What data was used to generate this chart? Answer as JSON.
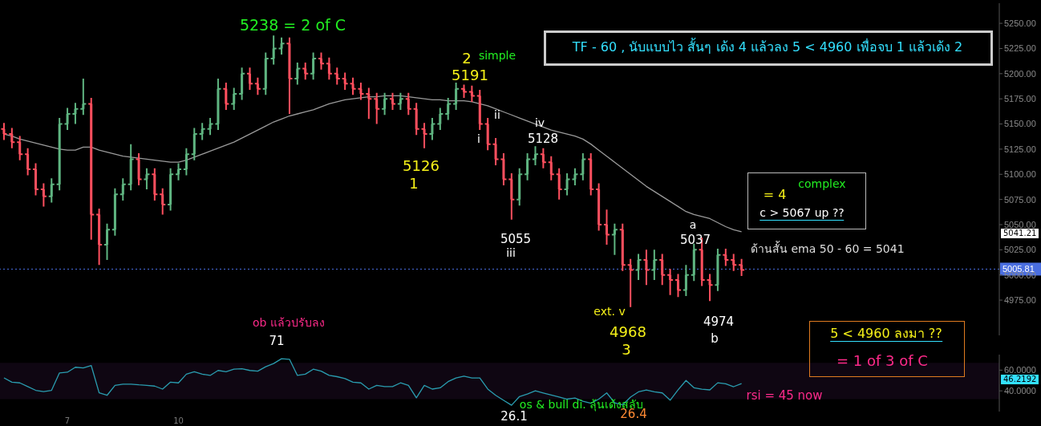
{
  "chart_data": [
    {
      "type": "candlestick",
      "categories": [
        null,
        null,
        null,
        null,
        null,
        null,
        null,
        null,
        null,
        null,
        null,
        null,
        null,
        null,
        null,
        null,
        null,
        null,
        null,
        null,
        null,
        null,
        null,
        null,
        null,
        null,
        null,
        null,
        null,
        null,
        null,
        null,
        null,
        null,
        null,
        null,
        null,
        null,
        null,
        null,
        null,
        null,
        null,
        null,
        null,
        null,
        null,
        null,
        null,
        null,
        null,
        null,
        null,
        null,
        null,
        null,
        null,
        null,
        null,
        null,
        null,
        null,
        null,
        null,
        null,
        null,
        null,
        null,
        null,
        null,
        null,
        null,
        null,
        null,
        null,
        null,
        null,
        null,
        null,
        null,
        null,
        null,
        null,
        null,
        null,
        null,
        null,
        null,
        null,
        null,
        null,
        null,
        null,
        null,
        null,
        null,
        null,
        null,
        null,
        null,
        null,
        null,
        null,
        null,
        null,
        null,
        null,
        null,
        null,
        null,
        null,
        null,
        null,
        null,
        null,
        null,
        null,
        null,
        null,
        null,
        null,
        null,
        null,
        null,
        null,
        null
      ],
      "series": [
        {
          "type": "line",
          "color": "#9a9a9a",
          "values": [
            5140,
            5138,
            5135,
            5133,
            5131,
            5129,
            5127,
            5125,
            5124,
            5124,
            5127,
            5127,
            5124,
            5122,
            5120,
            5118,
            5117,
            5116,
            5115,
            5114,
            5113,
            5112,
            5112,
            5114,
            5117,
            5120,
            5123,
            5126,
            5129,
            5132,
            5136,
            5140,
            5144,
            5148,
            5152,
            5155,
            5158,
            5160,
            5162,
            5164,
            5167,
            5170,
            5172,
            5174,
            5175,
            5176,
            5177,
            5177,
            5178,
            5178,
            5178,
            5177,
            5176,
            5175,
            5174,
            5174,
            5173,
            5173,
            5173,
            5172,
            5170,
            5168,
            5165,
            5162,
            5159,
            5156,
            5153,
            5150,
            5147,
            5144,
            5142,
            5140,
            5138,
            5135,
            5130,
            5124,
            5118,
            5112,
            5106,
            5100,
            5094,
            5088,
            5083,
            5078,
            5073,
            5068,
            5063,
            5060,
            5058,
            5056,
            5052,
            5048,
            5045,
            5043,
            null,
            null,
            null,
            null,
            null,
            null,
            null,
            null,
            null,
            null,
            null,
            null,
            null,
            null,
            null,
            null,
            null,
            null,
            null,
            null,
            null,
            null,
            null,
            null,
            null,
            null,
            null,
            null,
            null,
            null,
            null,
            null
          ]
        },
        {
          "type": "candlestick",
          "ohlc": [
            [
              5145,
              5151,
              5134,
              5140
            ],
            [
              5140,
              5146,
              5126,
              5132
            ],
            [
              5132,
              5138,
              5114,
              5120
            ],
            [
              5120,
              5126,
              5099,
              5105
            ],
            [
              5105,
              5111,
              5079,
              5085
            ],
            [
              5085,
              5091,
              5068,
              5078
            ],
            [
              5078,
              5096,
              5072,
              5090
            ],
            [
              5090,
              5156,
              5084,
              5150
            ],
            [
              5150,
              5166,
              5144,
              5160
            ],
            [
              5160,
              5171,
              5150,
              5165
            ],
            [
              5165,
              5195,
              5159,
              5170
            ],
            [
              5170,
              5176,
              5035,
              5060
            ],
            [
              5060,
              5066,
              5010,
              5030
            ],
            [
              5030,
              5051,
              5015,
              5045
            ],
            [
              5045,
              5086,
              5039,
              5080
            ],
            [
              5080,
              5096,
              5074,
              5090
            ],
            [
              5090,
              5130,
              5084,
              5115
            ],
            [
              5115,
              5121,
              5089,
              5095
            ],
            [
              5095,
              5106,
              5085,
              5100
            ],
            [
              5100,
              5106,
              5074,
              5080
            ],
            [
              5080,
              5086,
              5060,
              5070
            ],
            [
              5070,
              5106,
              5064,
              5100
            ],
            [
              5100,
              5111,
              5094,
              5105
            ],
            [
              5105,
              5126,
              5099,
              5120
            ],
            [
              5120,
              5146,
              5114,
              5140
            ],
            [
              5140,
              5151,
              5134,
              5145
            ],
            [
              5145,
              5156,
              5139,
              5150
            ],
            [
              5150,
              5195,
              5144,
              5185
            ],
            [
              5185,
              5191,
              5164,
              5170
            ],
            [
              5170,
              5186,
              5164,
              5180
            ],
            [
              5180,
              5206,
              5174,
              5200
            ],
            [
              5200,
              5206,
              5184,
              5190
            ],
            [
              5190,
              5196,
              5179,
              5185
            ],
            [
              5185,
              5221,
              5179,
              5215
            ],
            [
              5215,
              5238,
              5209,
              5225
            ],
            [
              5225,
              5236,
              5219,
              5230
            ],
            [
              5230,
              5236,
              5160,
              5195
            ],
            [
              5195,
              5211,
              5189,
              5205
            ],
            [
              5205,
              5211,
              5194,
              5200
            ],
            [
              5200,
              5221,
              5194,
              5215
            ],
            [
              5215,
              5221,
              5204,
              5210
            ],
            [
              5210,
              5216,
              5194,
              5200
            ],
            [
              5200,
              5206,
              5189,
              5195
            ],
            [
              5195,
              5201,
              5184,
              5190
            ],
            [
              5190,
              5196,
              5179,
              5185
            ],
            [
              5185,
              5191,
              5174,
              5180
            ],
            [
              5180,
              5186,
              5155,
              5175
            ],
            [
              5175,
              5181,
              5150,
              5165
            ],
            [
              5165,
              5181,
              5159,
              5175
            ],
            [
              5175,
              5181,
              5164,
              5170
            ],
            [
              5170,
              5181,
              5164,
              5175
            ],
            [
              5175,
              5181,
              5159,
              5165
            ],
            [
              5165,
              5171,
              5139,
              5145
            ],
            [
              5145,
              5151,
              5126,
              5140
            ],
            [
              5140,
              5156,
              5134,
              5150
            ],
            [
              5150,
              5166,
              5144,
              5160
            ],
            [
              5160,
              5176,
              5154,
              5170
            ],
            [
              5170,
              5191,
              5164,
              5185
            ],
            [
              5185,
              5189,
              5176,
              5182
            ],
            [
              5182,
              5188,
              5172,
              5178
            ],
            [
              5178,
              5184,
              5144,
              5150
            ],
            [
              5150,
              5156,
              5124,
              5130
            ],
            [
              5130,
              5136,
              5109,
              5115
            ],
            [
              5115,
              5121,
              5089,
              5095
            ],
            [
              5095,
              5101,
              5055,
              5075
            ],
            [
              5075,
              5106,
              5069,
              5100
            ],
            [
              5100,
              5121,
              5094,
              5115
            ],
            [
              5115,
              5128,
              5109,
              5120
            ],
            [
              5120,
              5126,
              5106,
              5112
            ],
            [
              5112,
              5118,
              5094,
              5100
            ],
            [
              5100,
              5106,
              5075,
              5085
            ],
            [
              5085,
              5101,
              5079,
              5095
            ],
            [
              5095,
              5106,
              5089,
              5100
            ],
            [
              5100,
              5121,
              5094,
              5115
            ],
            [
              5115,
              5121,
              5079,
              5085
            ],
            [
              5085,
              5091,
              5044,
              5050
            ],
            [
              5050,
              5065,
              5030,
              5040
            ],
            [
              5040,
              5051,
              5020,
              5045
            ],
            [
              5045,
              5051,
              5004,
              5010
            ],
            [
              5010,
              5016,
              4968,
              5005
            ],
            [
              5005,
              5021,
              4995,
              5015
            ],
            [
              5015,
              5025,
              4990,
              5005
            ],
            [
              5005,
              5025,
              4995,
              5015
            ],
            [
              5015,
              5021,
              4990,
              5000
            ],
            [
              5000,
              5006,
              4980,
              4995
            ],
            [
              4995,
              5001,
              4978,
              4985
            ],
            [
              4985,
              5010,
              4979,
              5000
            ],
            [
              5000,
              5031,
              4994,
              5025
            ],
            [
              5025,
              5037,
              4989,
              4995
            ],
            [
              4995,
              5001,
              4974,
              4990
            ],
            [
              4990,
              5026,
              4984,
              5020
            ],
            [
              5020,
              5026,
              5009,
              5015
            ],
            [
              5015,
              5021,
              5004,
              5010
            ],
            [
              5010,
              5016,
              4999,
              5005
            ],
            null,
            null,
            null,
            null,
            null,
            null,
            null,
            null,
            null,
            null,
            null,
            null,
            null,
            null,
            null,
            null,
            null,
            null,
            null,
            null,
            null,
            null,
            null,
            null,
            null,
            null,
            null,
            null,
            null,
            null,
            null,
            null
          ],
          "colors": [
            "#ff4f5e",
            "#ff4f5e",
            "#ff4f5e",
            "#ff4f5e",
            "#ff4f5e",
            "#ff4f5e",
            "#5fb581",
            "#5fb581",
            "#5fb581",
            "#5fb581",
            "#5fb581",
            "#ff4f5e",
            "#ff4f5e",
            "#5fb581",
            "#5fb581",
            "#5fb581",
            "#5fb581",
            "#ff4f5e",
            "#5fb581",
            "#ff4f5e",
            "#ff4f5e",
            "#5fb581",
            "#5fb581",
            "#5fb581",
            "#5fb581",
            "#5fb581",
            "#5fb581",
            "#5fb581",
            "#ff4f5e",
            "#5fb581",
            "#5fb581",
            "#ff4f5e",
            "#ff4f5e",
            "#5fb581",
            "#5fb581",
            "#5fb581",
            "#ff4f5e",
            "#5fb581",
            "#ff4f5e",
            "#5fb581",
            "#ff4f5e",
            "#ff4f5e",
            "#ff4f5e",
            "#ff4f5e",
            "#ff4f5e",
            "#ff4f5e",
            "#ff4f5e",
            "#ff4f5e",
            "#5fb581",
            "#ff4f5e",
            "#5fb581",
            "#ff4f5e",
            "#ff4f5e",
            "#ff4f5e",
            "#5fb581",
            "#5fb581",
            "#5fb581",
            "#5fb581",
            "#ff4f5e",
            "#ff4f5e",
            "#ff4f5e",
            "#ff4f5e",
            "#ff4f5e",
            "#ff4f5e",
            "#ff4f5e",
            "#5fb581",
            "#5fb581",
            "#5fb581",
            "#ff4f5e",
            "#ff4f5e",
            "#ff4f5e",
            "#5fb581",
            "#5fb581",
            "#5fb581",
            "#ff4f5e",
            "#ff4f5e",
            "#ff4f5e",
            "#5fb581",
            "#ff4f5e",
            "#ff4f5e",
            "#5fb581",
            "#ff4f5e",
            "#5fb581",
            "#ff4f5e",
            "#ff4f5e",
            "#ff4f5e",
            "#5fb581",
            "#5fb581",
            "#ff4f5e",
            "#ff4f5e",
            "#5fb581",
            "#ff4f5e",
            "#ff4f5e",
            "#ff4f5e",
            null,
            null,
            null,
            null,
            null,
            null,
            null,
            null,
            null,
            null,
            null,
            null,
            null,
            null,
            null,
            null,
            null,
            null,
            null,
            null,
            null,
            null,
            null,
            null,
            null,
            null,
            null,
            null,
            null,
            null,
            null,
            null
          ]
        }
      ],
      "ylim": [
        4940,
        5270
      ],
      "yticks": [
        {
          "value": 4975,
          "label": "4975.00"
        },
        {
          "value": 5000,
          "label": "5000.00"
        },
        {
          "value": 5025,
          "label": "5025.00"
        },
        {
          "value": 5050,
          "label": "5050.00"
        },
        {
          "value": 5075,
          "label": "5075.00"
        },
        {
          "value": 5100,
          "label": "5100.00"
        },
        {
          "value": 5125,
          "label": "5125.00"
        },
        {
          "value": 5150,
          "label": "5150.00"
        },
        {
          "value": 5175,
          "label": "5175.00"
        },
        {
          "value": 5200,
          "label": "5200.00"
        },
        {
          "value": 5225,
          "label": "5225.00"
        },
        {
          "value": 5250,
          "label": "5250.00"
        }
      ],
      "tick_labels": "y",
      "ref_lines": [
        {
          "axis": "y",
          "value": 5005.81,
          "label": "5005.81",
          "color": "#4a6ee0",
          "line_style": "dotted"
        }
      ],
      "annotations": [
        "5238 = 2  of C",
        "2",
        "simple",
        "5191",
        "5126",
        "1",
        "i",
        "ii",
        "iv",
        "5128",
        "5055",
        "iii",
        "ext. v",
        "4968",
        "3",
        "a",
        "5037",
        "4974",
        "b",
        "TF - 60 , นับแบบไว สั้นๆ เด้ง 4 แล้วลง 5 < 4960 เพื่อจบ 1 แล้วเด้ง 2",
        "= 4",
        "complex",
        "c > 5067 up ??",
        "ด้านสั้น ema 50 - 60 = 5041",
        "5 < 4960 ลงมา ??",
        "= 1  of  3  of  C",
        "5041.21"
      ]
    },
    {
      "type": "line",
      "categories": [
        null,
        null,
        null,
        null,
        null,
        null,
        null,
        null,
        "7",
        null,
        null,
        null,
        null,
        null,
        null,
        null,
        null,
        null,
        null,
        null,
        null,
        null,
        "10",
        null,
        null,
        null,
        null,
        null,
        null,
        null,
        null,
        null,
        null,
        null,
        null,
        null,
        null,
        null,
        null,
        null,
        null,
        null,
        null,
        null,
        null,
        null,
        null,
        null,
        null,
        null,
        null,
        null,
        null,
        null,
        null,
        null,
        null,
        null,
        null,
        null,
        null,
        null,
        null,
        null,
        null,
        null,
        null,
        null,
        null,
        null,
        null,
        null,
        null,
        null,
        null,
        null,
        null,
        null,
        null,
        null,
        null,
        null,
        null,
        null,
        null,
        null,
        null,
        null,
        null,
        null,
        null,
        null,
        null,
        null,
        null,
        null,
        null,
        null,
        null,
        null,
        null,
        null,
        null,
        null,
        null,
        null,
        null,
        null,
        null,
        null,
        null,
        null,
        null,
        null,
        null,
        null,
        null,
        null,
        null,
        null,
        null,
        null,
        null,
        null,
        null,
        null
      ],
      "values": [
        52.5,
        48.4,
        47.7,
        44.1,
        40.5,
        39.3,
        40.5,
        57.3,
        58,
        62.8,
        62.1,
        64.5,
        38.1,
        35.7,
        45.3,
        46.5,
        46.5,
        45.8,
        45.3,
        44.6,
        41.7,
        48.4,
        47.7,
        56.1,
        58.5,
        56.1,
        54.9,
        59.7,
        58.5,
        60.9,
        61.4,
        59.7,
        59,
        63.3,
        66.4,
        71,
        70.5,
        54.9,
        56.1,
        60.9,
        59,
        54.9,
        53.7,
        51.8,
        48.4,
        47.7,
        41.7,
        45.3,
        44.1,
        44.1,
        47.7,
        45.3,
        33.3,
        45.3,
        41.7,
        42.9,
        48.9,
        52.5,
        54.2,
        52.5,
        52.5,
        41.7,
        35.7,
        30.9,
        26.1,
        34.5,
        37,
        40,
        38,
        36,
        34,
        32,
        33,
        30,
        28,
        32,
        38,
        28.5,
        26.4,
        34,
        39,
        40.9,
        39,
        38,
        31,
        41,
        50,
        43,
        41.6,
        40.9,
        47.8,
        46.8,
        44,
        47,
        null,
        null,
        null,
        null,
        null,
        null,
        null,
        null,
        null,
        null,
        null,
        null,
        null,
        null,
        null,
        null,
        null,
        null,
        null,
        null,
        null,
        null,
        null,
        null,
        null,
        null,
        null,
        null,
        null,
        null,
        null,
        null
      ],
      "color": "#2a9db0",
      "ylim": [
        20,
        75
      ],
      "yticks": [
        {
          "value": 40,
          "label": "40.0000"
        },
        {
          "value": 60,
          "label": "60.0000"
        }
      ],
      "bands": [
        {
          "axis": "y",
          "from": 32,
          "to": 67,
          "color": "#0f0612"
        }
      ],
      "annotations": [
        "ob แล้วปรับลง",
        "71",
        "os & bull di. ลุ้นเด้งสลับ",
        "26.1",
        "26.4",
        "rsi = 45 now",
        "46.2192"
      ]
    }
  ]
}
